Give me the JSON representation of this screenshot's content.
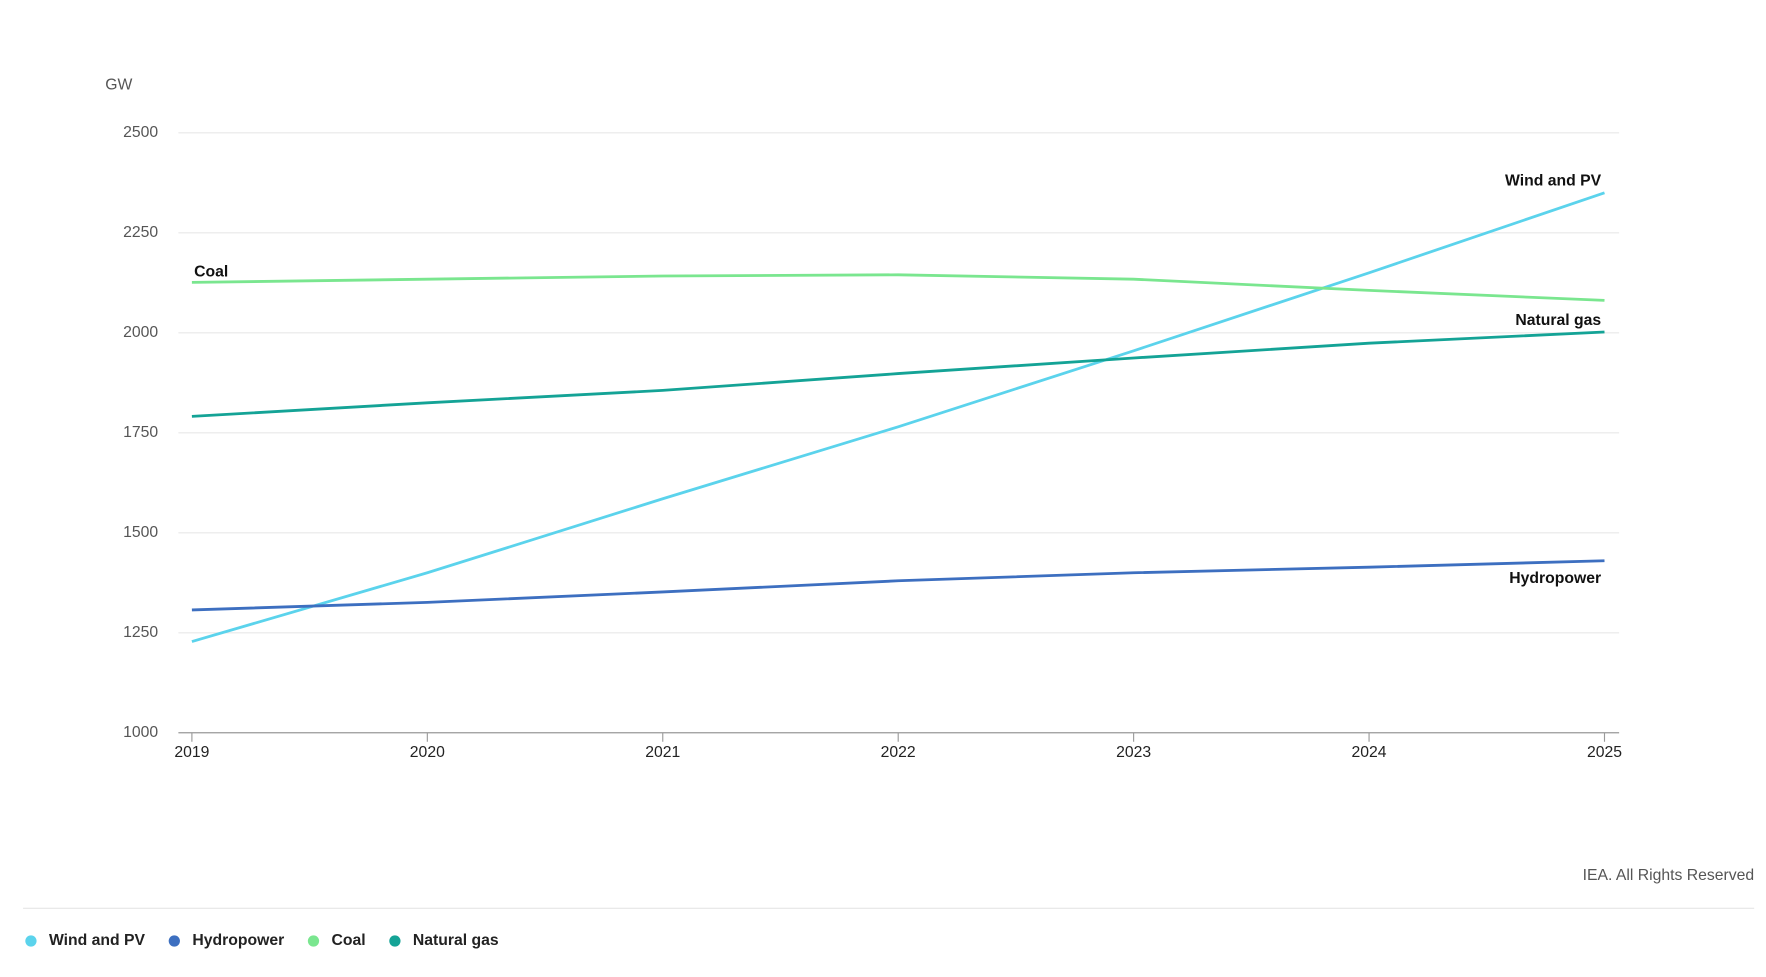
{
  "chart_data": {
    "type": "line",
    "y_label": "GW",
    "x": [
      2019,
      2020,
      2021,
      2022,
      2023,
      2024,
      2025
    ],
    "xlim": [
      2019,
      2025
    ],
    "xticks": [
      2019,
      2020,
      2021,
      2022,
      2023,
      2024,
      2025
    ],
    "ylim": [
      1000,
      2500
    ],
    "yticks": [
      1000,
      1250,
      1500,
      1750,
      2000,
      2250,
      2500
    ],
    "grid": true,
    "legend": "bottom-left",
    "series": [
      {
        "name": "Wind and PV",
        "color": "#5bd3ec",
        "values": [
          1228,
          1400,
          1585,
          1765,
          1955,
          2150,
          2350
        ]
      },
      {
        "name": "Hydropower",
        "color": "#3d6fc0",
        "values": [
          1307,
          1326,
          1352,
          1380,
          1400,
          1414,
          1430
        ]
      },
      {
        "name": "Coal",
        "color": "#7ae68f",
        "values": [
          2126,
          2134,
          2142,
          2145,
          2134,
          2106,
          2081
        ]
      },
      {
        "name": "Natural gas",
        "color": "#14a396",
        "values": [
          1791,
          1825,
          1856,
          1898,
          1937,
          1974,
          2002
        ]
      }
    ],
    "source": "IEA. All Rights Reserved"
  }
}
